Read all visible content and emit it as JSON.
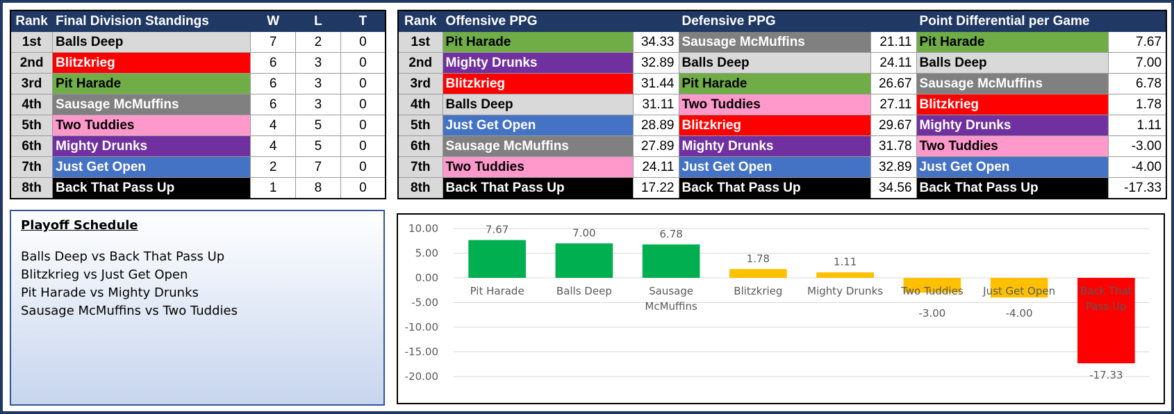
{
  "standings": {
    "headers": [
      "Rank",
      "Final Division Standings",
      "W",
      "L",
      "T"
    ],
    "rows": [
      {
        "rank": "1st",
        "team": "Balls Deep",
        "w": "7",
        "l": "2",
        "t": "0"
      },
      {
        "rank": "2nd",
        "team": "Blitzkrieg",
        "w": "6",
        "l": "3",
        "t": "0"
      },
      {
        "rank": "3rd",
        "team": "Pit Harade",
        "w": "6",
        "l": "3",
        "t": "0"
      },
      {
        "rank": "4th",
        "team": "Sausage McMuffins",
        "w": "6",
        "l": "3",
        "t": "0"
      },
      {
        "rank": "5th",
        "team": "Two Tuddies",
        "w": "4",
        "l": "5",
        "t": "0"
      },
      {
        "rank": "6th",
        "team": "Mighty Drunks",
        "w": "4",
        "l": "5",
        "t": "0"
      },
      {
        "rank": "7th",
        "team": "Just Get Open",
        "w": "2",
        "l": "7",
        "t": "0"
      },
      {
        "rank": "8th",
        "team": "Back That Pass Up",
        "w": "1",
        "l": "8",
        "t": "0"
      }
    ]
  },
  "stats": {
    "headers": [
      "Rank",
      "Offensive PPG",
      "Defensive PPG",
      "Point Differential per Game"
    ],
    "rows": [
      {
        "rank": "1st",
        "off_team": "Pit Harade",
        "off": "34.33",
        "def_team": "Sausage McMuffins",
        "def": "21.11",
        "diff_team": "Pit Harade",
        "diff": "7.67"
      },
      {
        "rank": "2nd",
        "off_team": "Mighty Drunks",
        "off": "32.89",
        "def_team": "Balls Deep",
        "def": "24.11",
        "diff_team": "Balls Deep",
        "diff": "7.00"
      },
      {
        "rank": "3rd",
        "off_team": "Blitzkrieg",
        "off": "31.44",
        "def_team": "Pit Harade",
        "def": "26.67",
        "diff_team": "Sausage McMuffins",
        "diff": "6.78"
      },
      {
        "rank": "4th",
        "off_team": "Balls Deep",
        "off": "31.11",
        "def_team": "Two Tuddies",
        "def": "27.11",
        "diff_team": "Blitzkrieg",
        "diff": "1.78"
      },
      {
        "rank": "5th",
        "off_team": "Just Get Open",
        "off": "28.89",
        "def_team": "Blitzkrieg",
        "def": "29.67",
        "diff_team": "Mighty Drunks",
        "diff": "1.11"
      },
      {
        "rank": "6th",
        "off_team": "Sausage McMuffins",
        "off": "27.89",
        "def_team": "Mighty Drunks",
        "def": "31.78",
        "diff_team": "Two Tuddies",
        "diff": "-3.00"
      },
      {
        "rank": "7th",
        "off_team": "Two Tuddies",
        "off": "24.11",
        "def_team": "Just Get Open",
        "def": "32.89",
        "diff_team": "Just Get Open",
        "diff": "-4.00"
      },
      {
        "rank": "8th",
        "off_team": "Back That Pass Up",
        "off": "17.22",
        "def_team": "Back That Pass Up",
        "def": "34.56",
        "diff_team": "Back That Pass Up",
        "diff": "-17.33"
      }
    ]
  },
  "team_colors": {
    "Balls Deep": {
      "bg": "#d9d9d9",
      "fg": "#000000"
    },
    "Blitzkrieg": {
      "bg": "#ff0000",
      "fg": "#ffffff"
    },
    "Pit Harade": {
      "bg": "#70ad47",
      "fg": "#000000"
    },
    "Sausage McMuffins": {
      "bg": "#808080",
      "fg": "#ffffff"
    },
    "Two Tuddies": {
      "bg": "#ff99cc",
      "fg": "#000000"
    },
    "Mighty Drunks": {
      "bg": "#7030a0",
      "fg": "#ffffff"
    },
    "Just Get Open": {
      "bg": "#4472c4",
      "fg": "#ffffff"
    },
    "Back That Pass Up": {
      "bg": "#000000",
      "fg": "#ffffff"
    }
  },
  "playoff": {
    "title": "Playoff Schedule",
    "games": [
      "Balls Deep vs Back That Pass Up",
      "Blitzkrieg vs Just Get Open",
      "Pit Harade vs Mighty Drunks",
      "Sausage McMuffins vs Two Tuddies"
    ]
  },
  "chart_data": {
    "type": "bar",
    "categories": [
      "Pit Harade",
      "Balls Deep",
      "Sausage McMuffins",
      "Blitzkrieg",
      "Mighty Drunks",
      "Two Tuddies",
      "Just Get Open",
      "Back That Pass Up"
    ],
    "values": [
      7.67,
      7.0,
      6.78,
      1.78,
      1.11,
      -3.0,
      -4.0,
      -17.33
    ],
    "data_labels": [
      "7.67",
      "7.00",
      "6.78",
      "1.78",
      "1.11",
      "-3.00",
      "-4.00",
      "-17.33"
    ],
    "bar_colors": [
      "#00b050",
      "#00b050",
      "#00b050",
      "#ffc000",
      "#ffc000",
      "#ffc000",
      "#ffc000",
      "#ff0000"
    ],
    "ylim": [
      -20,
      10
    ],
    "yticks": [
      "10.00",
      "5.00",
      "0.00",
      "-5.00",
      "-10.00",
      "-15.00",
      "-20.00"
    ],
    "ytick_values": [
      10,
      5,
      0,
      -5,
      -10,
      -15,
      -20
    ],
    "grid": true,
    "title": "",
    "xlabel": "",
    "ylabel": ""
  }
}
